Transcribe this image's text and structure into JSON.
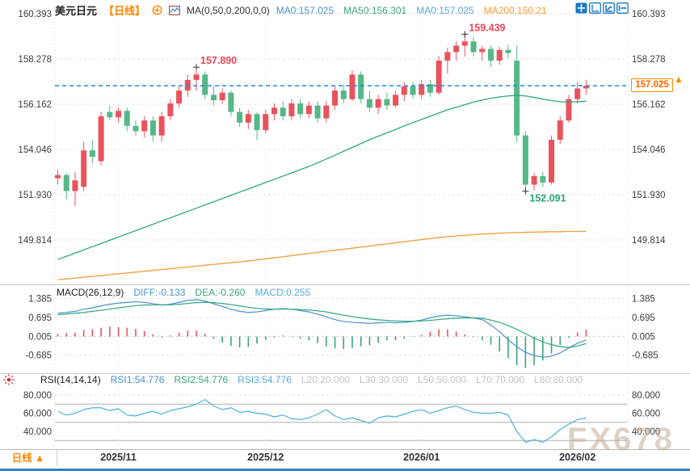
{
  "header": {
    "symbol": "美元日元",
    "period": "【日线】",
    "ma_settings": "MA(0,50,0,200,0,0)",
    "ma_values": [
      {
        "label": "MA0:157.025",
        "color": "#4a90d2"
      },
      {
        "label": "MA50:156.301",
        "color": "#3aa57a"
      },
      {
        "label": "MA0:157.025",
        "color": "#56aadc"
      },
      {
        "label": "MA200:150.21",
        "color": "#ff9933"
      }
    ]
  },
  "toolbar_icons": [
    "move-icon",
    "zoom-axis-icon",
    "axis-scale-icon",
    "exit-icon"
  ],
  "current_price": {
    "value": "157.025"
  },
  "annotations": [
    {
      "text": "157.890",
      "type": "high",
      "candle": 16,
      "color": "#e8485a"
    },
    {
      "text": "159.439",
      "type": "high",
      "candle": 47,
      "color": "#e8485a"
    },
    {
      "text": "152.091",
      "type": "low",
      "candle": 54,
      "color": "#2aa57a"
    }
  ],
  "macd_header": {
    "name": "MACD(26,12,9)",
    "items": [
      {
        "label": "DIFF:-0.133",
        "color": "#4a90d2"
      },
      {
        "label": "DEA:-0.260",
        "color": "#3aa57a"
      },
      {
        "label": "MACD:0.255",
        "color": "#56aadc"
      }
    ]
  },
  "rsi_header": {
    "name": "RSI(14,14,14)",
    "items": [
      {
        "label": "RSI1:54.776",
        "color": "#4a90d2"
      },
      {
        "label": "RSI2:54.776",
        "color": "#3aa57a"
      },
      {
        "label": "RSI3:54.776",
        "color": "#56aadc"
      },
      {
        "label": "L20:20.000",
        "color": "#c2c2c2"
      },
      {
        "label": "L30:30.000",
        "color": "#c2c2c2"
      },
      {
        "label": "L50:50.000",
        "color": "#c2c2c2"
      },
      {
        "label": "L70:70.000",
        "color": "#c2c2c2"
      },
      {
        "label": "L80:80.000",
        "color": "#c2c2c2"
      }
    ]
  },
  "bottom": {
    "period_button": "日线 ▲",
    "x_ticks": [
      {
        "label": "2025/11",
        "candle": 7
      },
      {
        "label": "2025/12",
        "candle": 24
      },
      {
        "label": "2026/01",
        "candle": 42
      },
      {
        "label": "2026/02",
        "candle": 60
      }
    ]
  },
  "watermark": "FX678",
  "colors": {
    "candle_up": "#e8535c",
    "candle_down": "#55b886",
    "ma50_line": "#2ea87e",
    "ma200_line": "#f29b38",
    "price_line": "#1e88e5",
    "diff_line": "#4a90d2",
    "dea_line": "#2ea87e",
    "rsi_line": "#49b3d9",
    "hist_up": "#e8535c",
    "hist_down": "#3aa57a",
    "grid": "#e3e3e3",
    "level_line": "#adadad",
    "axis_text": "#3c3c3c",
    "accent_orange": "#ff8800",
    "toolbar_blue": "#1779c4"
  },
  "chart_data": [
    {
      "type": "candlestick",
      "title": "美元日元 日线 (USD/JPY daily)",
      "y_ticks": [
        160.393,
        158.278,
        156.162,
        154.046,
        151.93,
        149.814
      ],
      "current_price": 157.025,
      "ohlc": [
        [
          152.7,
          153.1,
          152.4,
          152.85
        ],
        [
          152.85,
          152.95,
          151.7,
          152.1
        ],
        [
          152.1,
          153.0,
          151.4,
          152.6
        ],
        [
          152.3,
          154.4,
          152.1,
          154.0
        ],
        [
          154.0,
          154.5,
          153.4,
          153.7
        ],
        [
          153.5,
          155.8,
          153.3,
          155.6
        ],
        [
          155.8,
          156.1,
          155.4,
          155.55
        ],
        [
          155.55,
          156.0,
          155.3,
          155.85
        ],
        [
          155.85,
          156.0,
          154.9,
          155.15
        ],
        [
          155.15,
          155.4,
          154.7,
          154.9
        ],
        [
          154.9,
          155.6,
          154.6,
          155.4
        ],
        [
          155.4,
          155.6,
          154.4,
          154.7
        ],
        [
          154.7,
          155.8,
          154.4,
          155.6
        ],
        [
          155.6,
          156.4,
          155.4,
          156.2
        ],
        [
          156.2,
          157.0,
          156.0,
          156.8
        ],
        [
          156.8,
          157.55,
          156.5,
          157.3
        ],
        [
          157.3,
          157.89,
          156.8,
          157.55
        ],
        [
          157.55,
          157.7,
          156.4,
          156.6
        ],
        [
          156.6,
          157.0,
          156.1,
          156.35
        ],
        [
          156.35,
          156.9,
          156.2,
          156.7
        ],
        [
          156.7,
          156.8,
          155.6,
          155.8
        ],
        [
          155.8,
          156.0,
          155.1,
          155.3
        ],
        [
          155.3,
          155.9,
          155.0,
          155.7
        ],
        [
          155.7,
          155.8,
          154.5,
          154.95
        ],
        [
          154.95,
          155.9,
          154.8,
          155.7
        ],
        [
          155.7,
          156.2,
          155.4,
          156.0
        ],
        [
          156.0,
          156.3,
          155.4,
          155.6
        ],
        [
          155.6,
          156.4,
          155.4,
          156.2
        ],
        [
          156.2,
          156.4,
          155.5,
          155.7
        ],
        [
          155.7,
          156.3,
          155.5,
          156.1
        ],
        [
          156.1,
          156.3,
          155.3,
          155.5
        ],
        [
          155.5,
          156.3,
          155.3,
          156.1
        ],
        [
          156.1,
          157.0,
          155.9,
          156.8
        ],
        [
          156.8,
          157.1,
          156.2,
          156.4
        ],
        [
          156.4,
          157.75,
          156.3,
          157.55
        ],
        [
          157.55,
          157.7,
          156.2,
          156.4
        ],
        [
          156.4,
          156.8,
          155.8,
          156.0
        ],
        [
          156.0,
          156.6,
          155.7,
          156.4
        ],
        [
          156.4,
          156.7,
          155.9,
          156.1
        ],
        [
          156.1,
          156.8,
          156.0,
          156.6
        ],
        [
          156.6,
          157.2,
          156.3,
          157.0
        ],
        [
          157.0,
          157.2,
          156.4,
          156.6
        ],
        [
          156.6,
          157.3,
          156.4,
          157.1
        ],
        [
          157.1,
          157.3,
          156.5,
          156.7
        ],
        [
          156.7,
          158.4,
          156.6,
          158.2
        ],
        [
          158.2,
          158.8,
          157.6,
          158.6
        ],
        [
          158.6,
          159.1,
          158.2,
          158.9
        ],
        [
          158.9,
          159.439,
          158.4,
          159.1
        ],
        [
          159.1,
          159.3,
          158.4,
          158.6
        ],
        [
          158.6,
          158.9,
          158.2,
          158.75
        ],
        [
          158.75,
          158.9,
          157.9,
          158.2
        ],
        [
          158.2,
          158.85,
          158.0,
          158.7
        ],
        [
          158.7,
          158.95,
          158.3,
          158.55
        ],
        [
          158.2,
          158.9,
          154.4,
          154.7
        ],
        [
          154.7,
          154.9,
          152.091,
          152.4
        ],
        [
          152.4,
          152.95,
          152.15,
          152.8
        ],
        [
          152.8,
          153.0,
          152.3,
          152.5
        ],
        [
          152.5,
          154.7,
          152.4,
          154.5
        ],
        [
          154.5,
          155.6,
          154.3,
          155.4
        ],
        [
          155.4,
          156.6,
          155.3,
          156.4
        ],
        [
          156.4,
          157.2,
          156.2,
          156.9
        ],
        [
          156.9,
          157.3,
          156.6,
          157.025
        ]
      ],
      "series": [
        {
          "name": "MA50",
          "values": [
            148.9,
            149.05,
            149.2,
            149.35,
            149.5,
            149.65,
            149.8,
            149.95,
            150.1,
            150.25,
            150.4,
            150.55,
            150.7,
            150.85,
            151.0,
            151.15,
            151.3,
            151.45,
            151.6,
            151.75,
            151.9,
            152.05,
            152.2,
            152.35,
            152.5,
            152.65,
            152.8,
            152.95,
            153.1,
            153.25,
            153.42,
            153.6,
            153.78,
            153.96,
            154.14,
            154.32,
            154.5,
            154.66,
            154.82,
            154.98,
            155.14,
            155.3,
            155.45,
            155.6,
            155.75,
            155.9,
            156.02,
            156.14,
            156.26,
            156.36,
            156.44,
            156.5,
            156.55,
            156.58,
            156.55,
            156.48,
            156.4,
            156.33,
            156.28,
            156.26,
            156.28,
            156.301
          ]
        },
        {
          "name": "MA200",
          "values": [
            147.95,
            147.99,
            148.03,
            148.07,
            148.11,
            148.15,
            148.19,
            148.23,
            148.27,
            148.31,
            148.35,
            148.39,
            148.43,
            148.47,
            148.51,
            148.55,
            148.59,
            148.63,
            148.67,
            148.71,
            148.75,
            148.79,
            148.83,
            148.88,
            148.93,
            148.98,
            149.03,
            149.08,
            149.13,
            149.18,
            149.23,
            149.28,
            149.33,
            149.38,
            149.43,
            149.48,
            149.53,
            149.58,
            149.63,
            149.68,
            149.73,
            149.78,
            149.83,
            149.88,
            149.93,
            149.97,
            150.0,
            150.03,
            150.06,
            150.09,
            150.11,
            150.13,
            150.15,
            150.16,
            150.17,
            150.18,
            150.19,
            150.2,
            150.2,
            150.21,
            150.21,
            150.21
          ]
        }
      ]
    },
    {
      "type": "bar+line",
      "title": "MACD(26,12,9)",
      "y_ticks": [
        1.385,
        0.695,
        0.005,
        -0.685
      ],
      "series": [
        {
          "name": "DIFF",
          "values": [
            0.85,
            0.88,
            0.92,
            1.0,
            1.05,
            1.12,
            1.18,
            1.22,
            1.25,
            1.27,
            1.25,
            1.2,
            1.15,
            1.18,
            1.25,
            1.32,
            1.35,
            1.3,
            1.2,
            1.1,
            1.0,
            0.92,
            0.88,
            0.9,
            0.95,
            1.0,
            1.02,
            1.0,
            0.95,
            0.9,
            0.82,
            0.72,
            0.62,
            0.55,
            0.52,
            0.5,
            0.48,
            0.5,
            0.52,
            0.5,
            0.52,
            0.55,
            0.6,
            0.68,
            0.75,
            0.78,
            0.76,
            0.72,
            0.68,
            0.62,
            0.42,
            0.18,
            -0.12,
            -0.38,
            -0.58,
            -0.7,
            -0.76,
            -0.72,
            -0.6,
            -0.42,
            -0.25,
            -0.133
          ]
        },
        {
          "name": "DEA",
          "values": [
            0.8,
            0.82,
            0.85,
            0.88,
            0.92,
            0.96,
            1.0,
            1.05,
            1.09,
            1.13,
            1.15,
            1.16,
            1.16,
            1.16,
            1.18,
            1.21,
            1.24,
            1.25,
            1.24,
            1.21,
            1.17,
            1.12,
            1.07,
            1.03,
            1.01,
            1.0,
            1.0,
            1.0,
            0.99,
            0.97,
            0.94,
            0.9,
            0.84,
            0.78,
            0.73,
            0.68,
            0.64,
            0.61,
            0.59,
            0.57,
            0.56,
            0.56,
            0.57,
            0.59,
            0.62,
            0.65,
            0.67,
            0.68,
            0.68,
            0.67,
            0.6,
            0.52,
            0.4,
            0.26,
            0.1,
            -0.06,
            -0.2,
            -0.3,
            -0.37,
            -0.4,
            -0.35,
            -0.26
          ]
        },
        {
          "name": "MACD-histogram",
          "values": [
            0.1,
            0.12,
            0.14,
            0.24,
            0.26,
            0.32,
            0.36,
            0.34,
            0.32,
            0.28,
            0.2,
            0.08,
            -0.04,
            0.04,
            0.14,
            0.22,
            0.22,
            0.1,
            -0.08,
            -0.22,
            -0.34,
            -0.4,
            -0.38,
            -0.26,
            -0.12,
            -0.04,
            0.04,
            -0.02,
            -0.08,
            -0.14,
            -0.24,
            -0.36,
            -0.44,
            -0.46,
            -0.42,
            -0.36,
            -0.32,
            -0.22,
            -0.14,
            -0.14,
            -0.08,
            -0.02,
            0.06,
            0.18,
            0.26,
            0.26,
            0.18,
            0.08,
            -0.02,
            -0.14,
            -0.3,
            -0.55,
            -0.8,
            -1.05,
            -1.15,
            -1.05,
            -0.88,
            -0.62,
            -0.32,
            -0.05,
            0.15,
            0.255
          ]
        }
      ]
    },
    {
      "type": "line",
      "title": "RSI(14,14,14)",
      "y_ticks": [
        80.0,
        60.0,
        40.0
      ],
      "levels": [
        80,
        70,
        50,
        30,
        20
      ],
      "series": [
        {
          "name": "RSI",
          "values": [
            62,
            58,
            60,
            64,
            66,
            66,
            63,
            65,
            58,
            57,
            60,
            62,
            59,
            63,
            65,
            67,
            70,
            75,
            68,
            64,
            66,
            61,
            62,
            60,
            59,
            56,
            58,
            54,
            53,
            55,
            59,
            64,
            57,
            53,
            55,
            52,
            49,
            55,
            57,
            56,
            59,
            62,
            64,
            60,
            63,
            66,
            68,
            64,
            61,
            60,
            60,
            61,
            58,
            40,
            28,
            31,
            28,
            34,
            42,
            48,
            53,
            54.776
          ]
        }
      ]
    }
  ]
}
